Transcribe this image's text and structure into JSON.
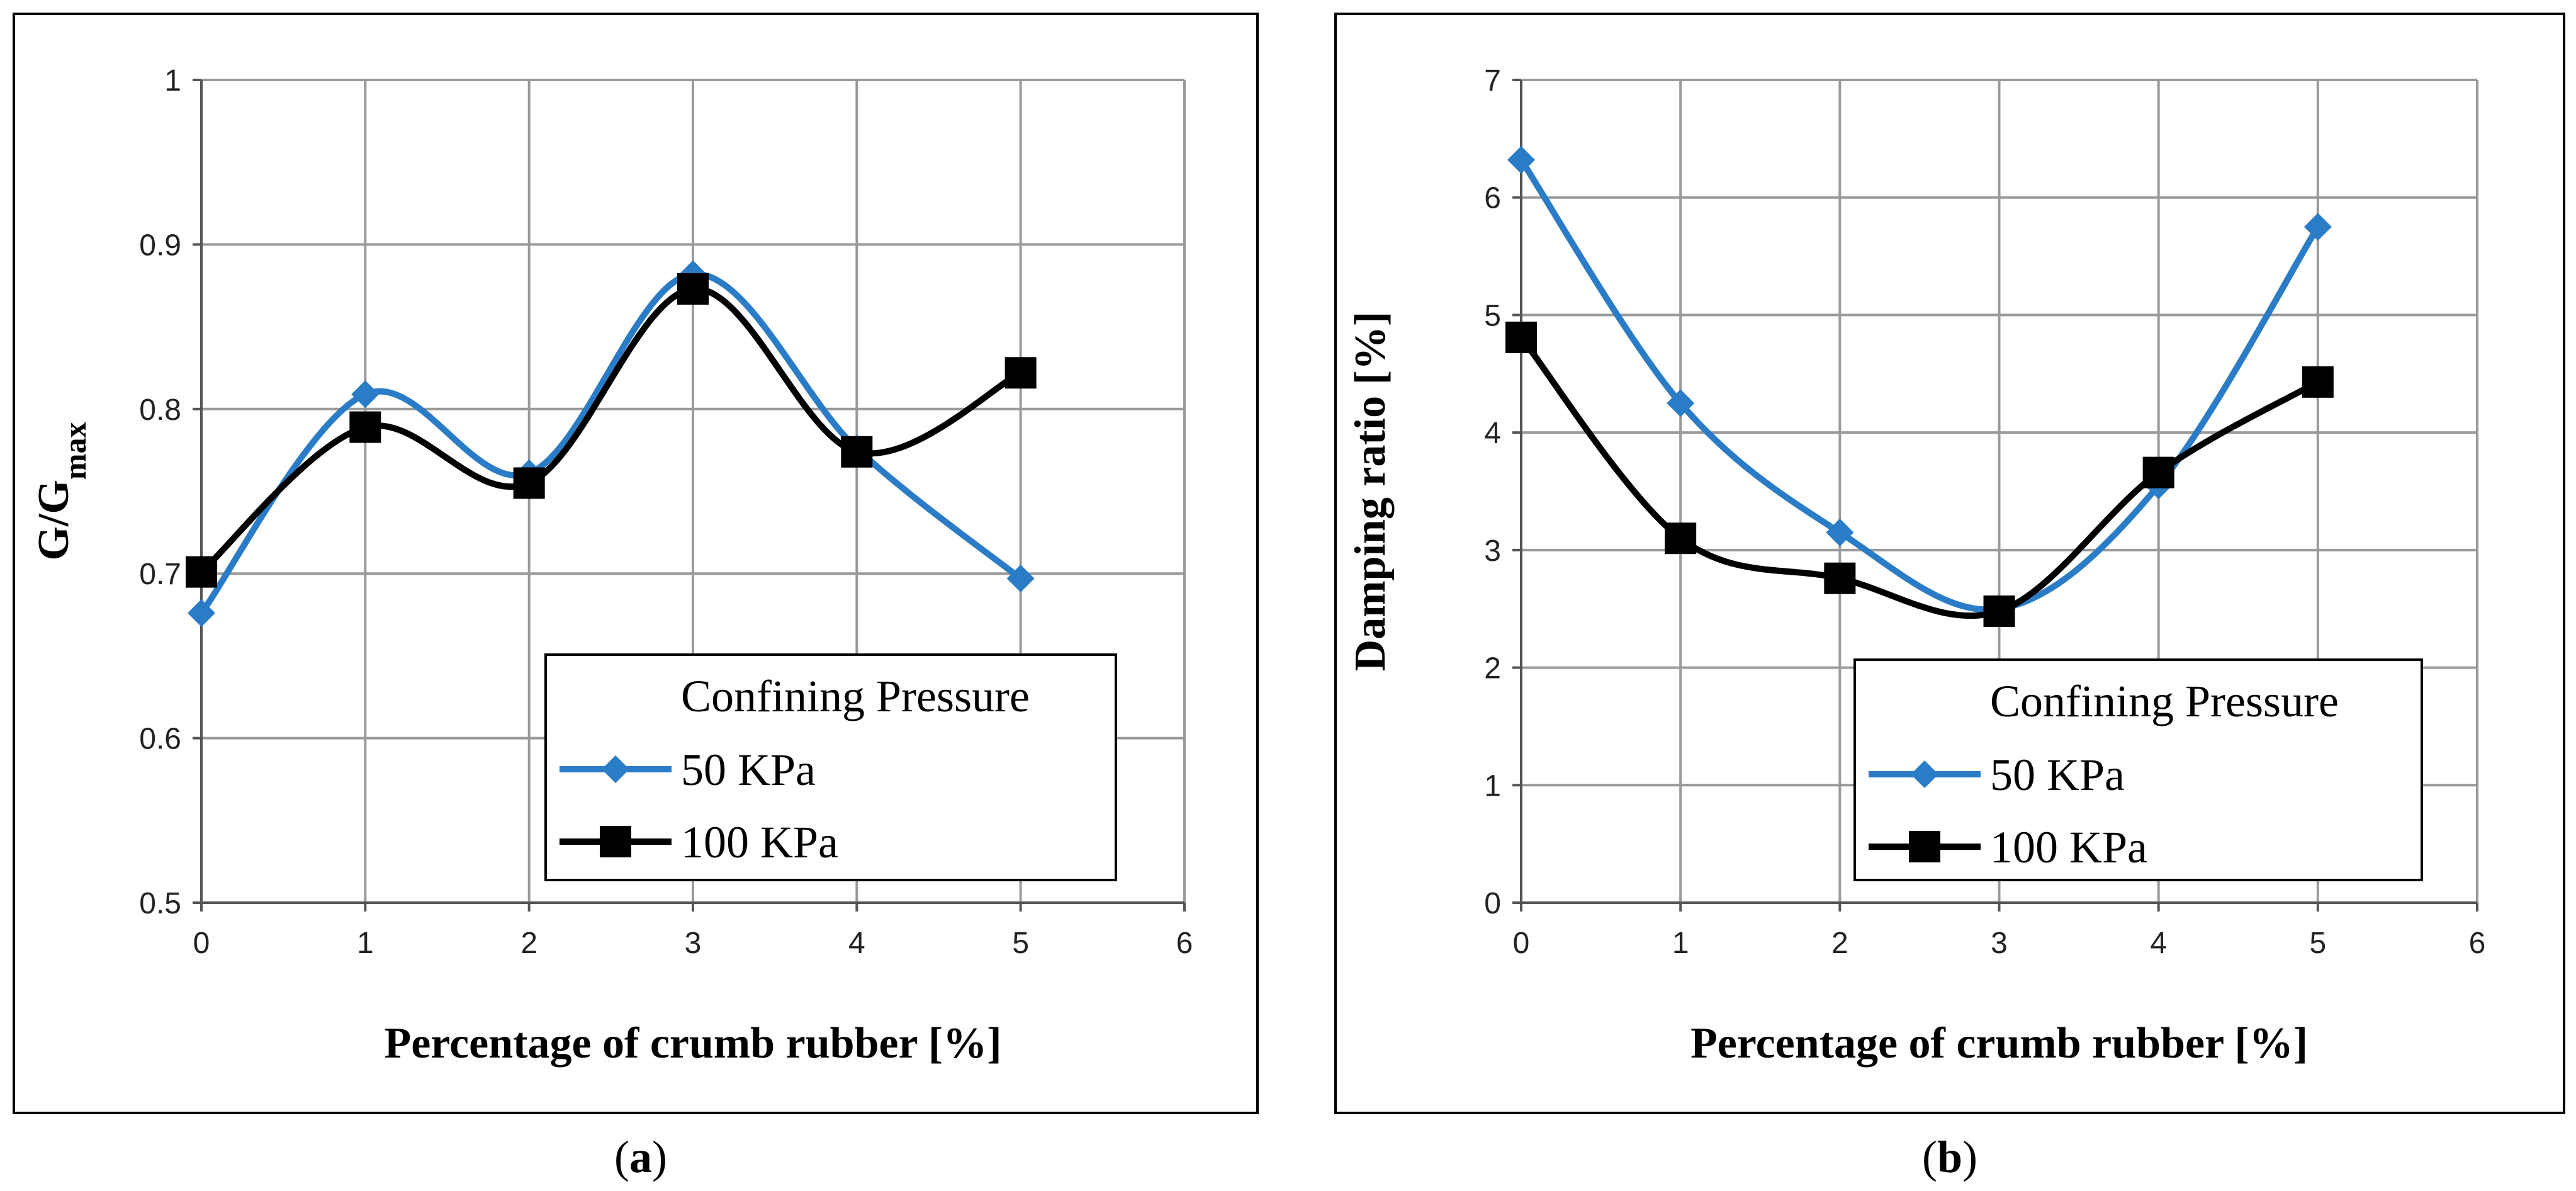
{
  "chart_data": [
    {
      "id": "a",
      "type": "line",
      "caption_letter": "a",
      "xlabel": "Percentage of crumb rubber [%]",
      "ylabel_main": "G/G",
      "ylabel_sub": "max",
      "xlim": [
        0,
        6
      ],
      "ylim": [
        0.5,
        1
      ],
      "xticks": [
        0,
        1,
        2,
        3,
        4,
        5,
        6
      ],
      "yticks": [
        0.5,
        0.6,
        0.7,
        0.8,
        0.9,
        1
      ],
      "ytick_labels": [
        "0.5",
        "0.6",
        "0.7",
        "0.8",
        "0.9",
        "1"
      ],
      "grid": true,
      "legend": {
        "title": "Confining Pressure",
        "placement": "bottom-right"
      },
      "series": [
        {
          "name": "50 KPa",
          "color": "#2a7cc7",
          "marker": "diamond",
          "x": [
            0,
            1,
            2,
            3,
            4,
            5
          ],
          "y": [
            0.676,
            0.809,
            0.761,
            0.882,
            0.776,
            0.697
          ]
        },
        {
          "name": "100 KPa",
          "color": "#000000",
          "marker": "square",
          "x": [
            0,
            1,
            2,
            3,
            4,
            5
          ],
          "y": [
            0.701,
            0.789,
            0.755,
            0.873,
            0.774,
            0.822
          ]
        }
      ]
    },
    {
      "id": "b",
      "type": "line",
      "caption_letter": "b",
      "xlabel": "Percentage of crumb rubber [%]",
      "ylabel_main": "Damping ratio [%]",
      "ylabel_sub": "",
      "xlim": [
        0,
        6
      ],
      "ylim": [
        0,
        7
      ],
      "xticks": [
        0,
        1,
        2,
        3,
        4,
        5,
        6
      ],
      "yticks": [
        0,
        1,
        2,
        3,
        4,
        5,
        6,
        7
      ],
      "ytick_labels": [
        "0",
        "1",
        "2",
        "3",
        "4",
        "5",
        "6",
        "7"
      ],
      "grid": true,
      "legend": {
        "title": "Confining Pressure",
        "placement": "bottom-right"
      },
      "series": [
        {
          "name": "50 KPa",
          "color": "#2a7cc7",
          "marker": "diamond",
          "x": [
            0,
            1,
            2,
            3,
            4,
            5
          ],
          "y": [
            6.32,
            4.25,
            3.15,
            2.5,
            3.55,
            5.75
          ]
        },
        {
          "name": "100 KPa",
          "color": "#000000",
          "marker": "square",
          "x": [
            0,
            1,
            2,
            3,
            4,
            5
          ],
          "y": [
            4.81,
            3.1,
            2.76,
            2.48,
            3.66,
            4.43
          ]
        }
      ]
    }
  ]
}
